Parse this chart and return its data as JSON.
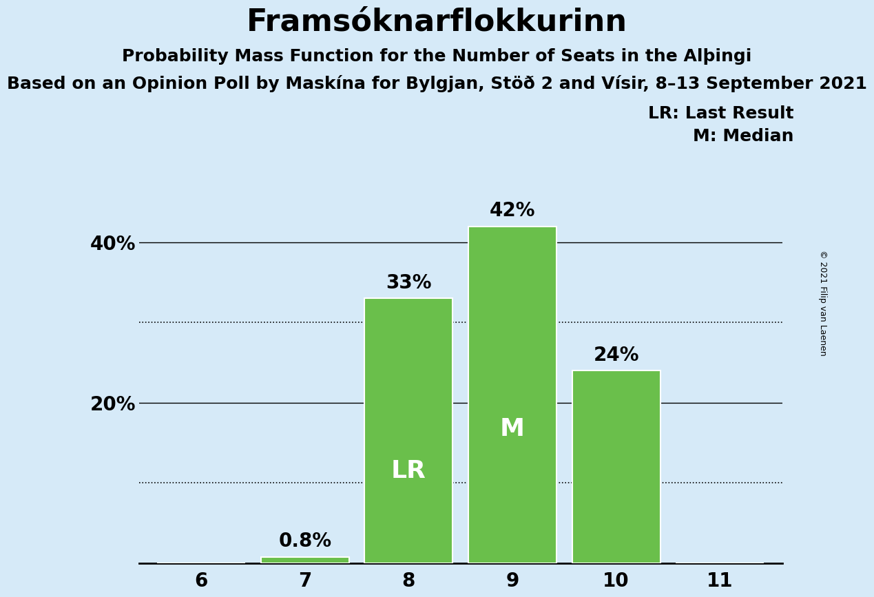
{
  "title": "Framsóknarflokkurinn",
  "subtitle1": "Probability Mass Function for the Number of Seats in the Alþingi",
  "subtitle2": "Based on an Opinion Poll by Maskína for Bylgjan, Stöð 2 and Vísir, 8–13 September 2021",
  "copyright": "© 2021 Filip van Laenen",
  "categories": [
    6,
    7,
    8,
    9,
    10,
    11
  ],
  "values": [
    0.0,
    0.8,
    33.0,
    42.0,
    24.0,
    0.0
  ],
  "bar_color": "#6abf4b",
  "bar_edge_color": "white",
  "background_color": "#d6eaf8",
  "last_result_seat": 8,
  "median_seat": 9,
  "lr_label": "LR",
  "m_label": "M",
  "lr_legend": "LR: Last Result",
  "m_legend": "M: Median",
  "ylim": [
    0,
    46
  ],
  "yticks": [
    20,
    40
  ],
  "ytick_labels": [
    "20%",
    "40%"
  ],
  "solid_grid_ticks": [
    20,
    40
  ],
  "dotted_grid_ticks": [
    10,
    30
  ],
  "title_fontsize": 32,
  "subtitle1_fontsize": 18,
  "subtitle2_fontsize": 18,
  "bar_label_fontsize": 20,
  "axis_label_fontsize": 20,
  "inner_label_fontsize": 26,
  "legend_fontsize": 18,
  "copyright_fontsize": 9
}
